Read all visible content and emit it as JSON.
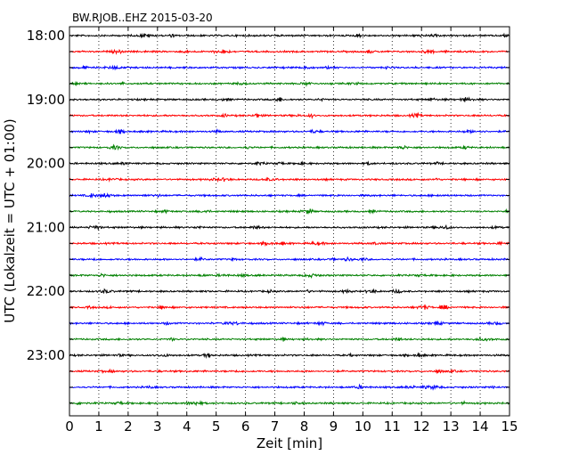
{
  "chart_data": {
    "type": "line",
    "title": "BW.RJOB..EHZ 2015-03-20",
    "xlabel": "Zeit  [min]",
    "ylabel": "UTC (Lokalzeit = UTC + 01:00)",
    "xlim": [
      0,
      15
    ],
    "x_ticks": [
      "0",
      "1",
      "2",
      "3",
      "4",
      "5",
      "6",
      "7",
      "8",
      "9",
      "10",
      "11",
      "12",
      "13",
      "14",
      "15"
    ],
    "y_tick_labels": [
      "18:00",
      "19:00",
      "20:00",
      "21:00",
      "22:00",
      "23:00"
    ],
    "grid": "vertical dotted",
    "line_colors": [
      "#000000",
      "#ff0000",
      "#0000ff",
      "#008000"
    ],
    "trace_start_times": [
      "18:00",
      "18:15",
      "18:30",
      "18:45",
      "19:00",
      "19:15",
      "19:30",
      "19:45",
      "20:00",
      "20:15",
      "20:30",
      "20:45",
      "21:00",
      "21:15",
      "21:30",
      "21:45",
      "22:00",
      "22:15",
      "22:30",
      "22:45",
      "23:00",
      "23:15",
      "23:30",
      "23:45"
    ],
    "trace_duration_min": 15
  }
}
